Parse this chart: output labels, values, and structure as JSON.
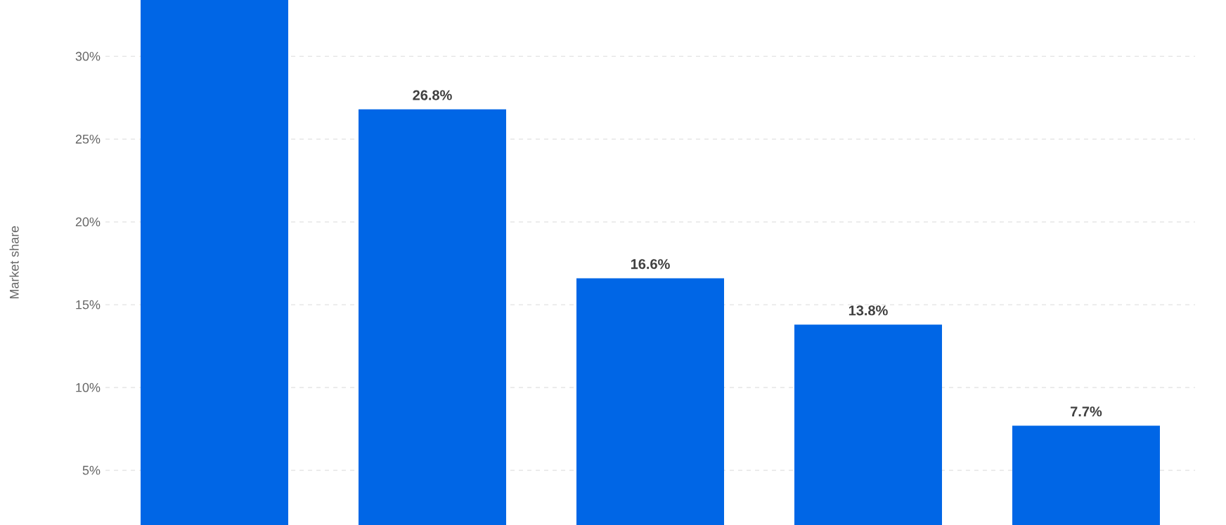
{
  "chart_data": {
    "type": "bar",
    "ylabel": "Market share",
    "categories": [
      null,
      null,
      null,
      null,
      null
    ],
    "values": [
      33.4,
      26.8,
      16.6,
      13.8,
      7.7
    ],
    "value_labels": [
      null,
      "26.8%",
      "16.6%",
      "13.8%",
      "7.7%"
    ],
    "color": "#0066e6",
    "ylim": [
      1.7,
      33.4
    ],
    "yticks": [
      {
        "value": 5,
        "label": "5%"
      },
      {
        "value": 10,
        "label": "10%"
      },
      {
        "value": 15,
        "label": "15%"
      },
      {
        "value": 20,
        "label": "20%"
      },
      {
        "value": 25,
        "label": "25%"
      },
      {
        "value": 30,
        "label": "30%"
      }
    ],
    "grid": "y",
    "tick_labels": "y"
  }
}
